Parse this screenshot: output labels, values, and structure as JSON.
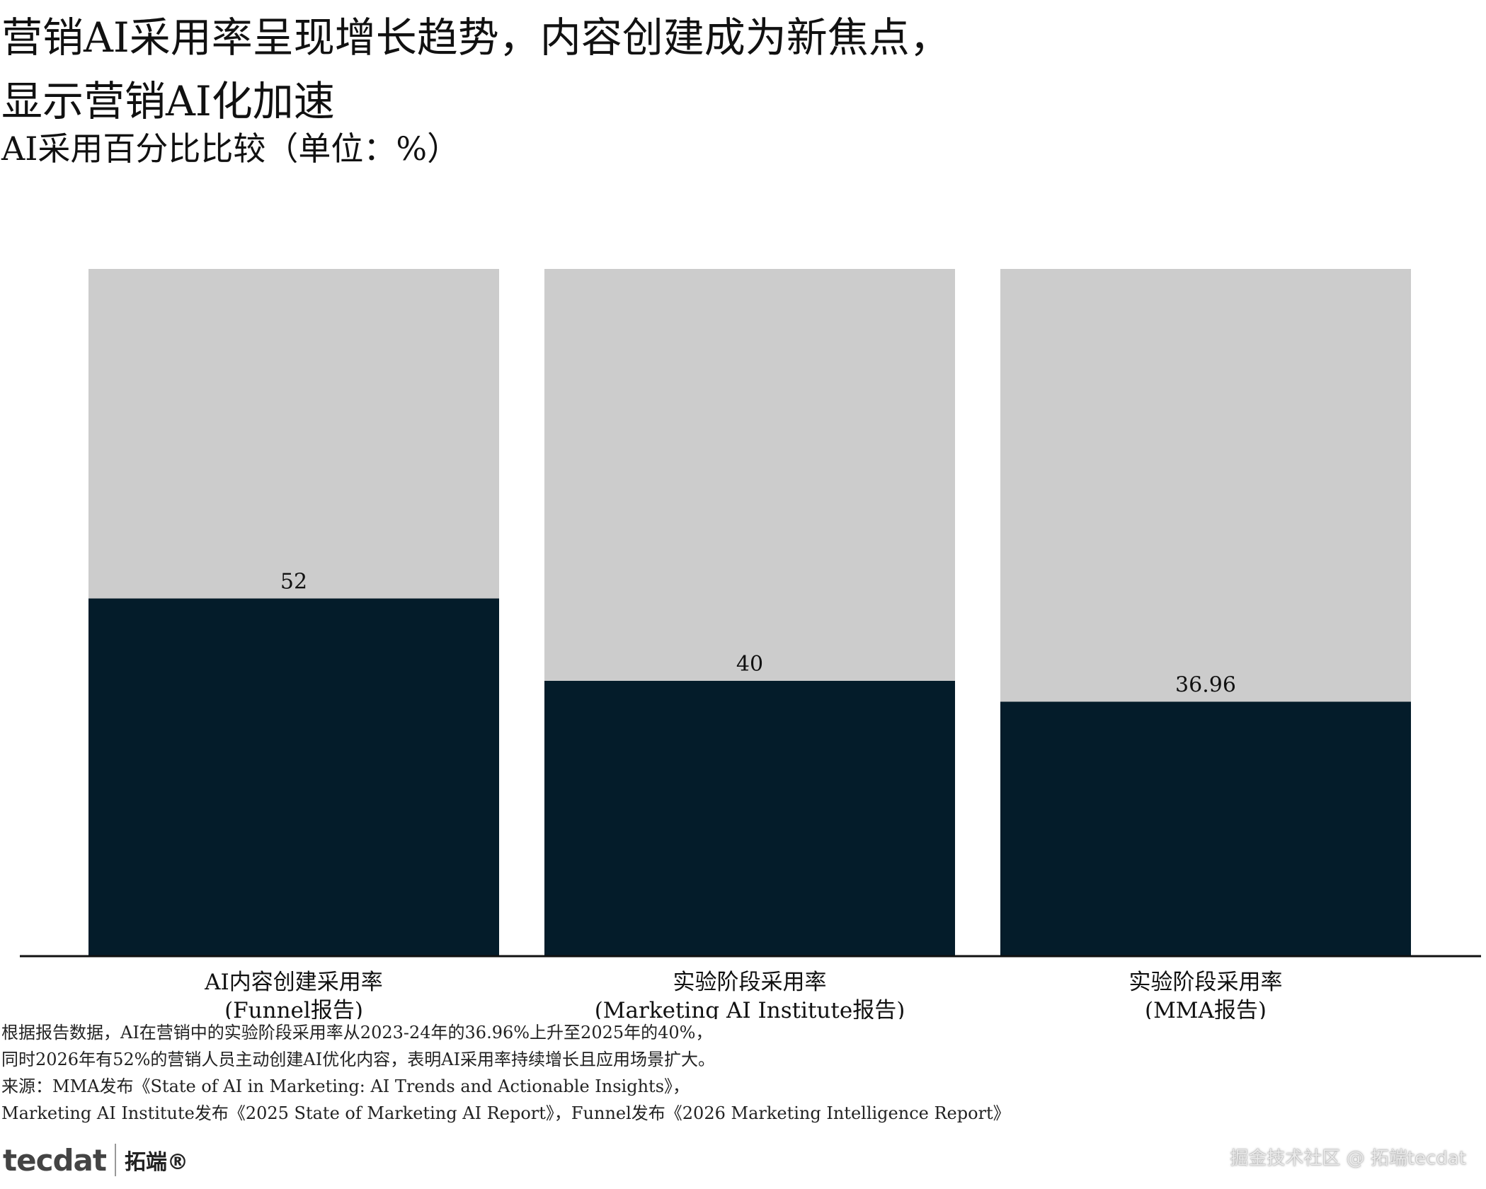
{
  "chart_data": {
    "type": "bar",
    "title_lines": [
      "营销AI采用率呈现增长趋势，内容创建成为新焦点，",
      "显示营销AI化加速"
    ],
    "subtitle": "AI采用百分比比较（单位：%）",
    "categories": [
      [
        "AI内容创建采用率",
        "(Funnel报告)"
      ],
      [
        "实验阶段采用率",
        "(Marketing AI Institute报告)"
      ],
      [
        "实验阶段采用率",
        "(MMA报告)"
      ]
    ],
    "values": [
      52,
      40,
      36.96
    ],
    "value_labels": [
      "52",
      "40",
      "36.96"
    ],
    "ylim": [
      0,
      100
    ],
    "stacked_remainder": true,
    "colors": {
      "value": "#041c2a",
      "remainder": "#cccccc",
      "axis": "#111111"
    },
    "grid": false,
    "legend": "none"
  },
  "notes": [
    "根据报告数据，AI在营销中的实验阶段采用率从2023-24年的36.96%上升至2025年的40%，",
    "同时2026年有52%的营销人员主动创建AI优化内容，表明AI采用率持续增长且应用场景扩大。",
    "来源：MMA发布《State of AI in Marketing: AI Trends and Actionable Insights》，",
    "Marketing AI Institute发布《2025 State of Marketing AI Report》，Funnel发布《2026 Marketing Intelligence Report》"
  ],
  "logo": {
    "word": "tecdat",
    "cn": "拓端®"
  },
  "watermark": "掘金技术社区 @ 拓端tecdat"
}
